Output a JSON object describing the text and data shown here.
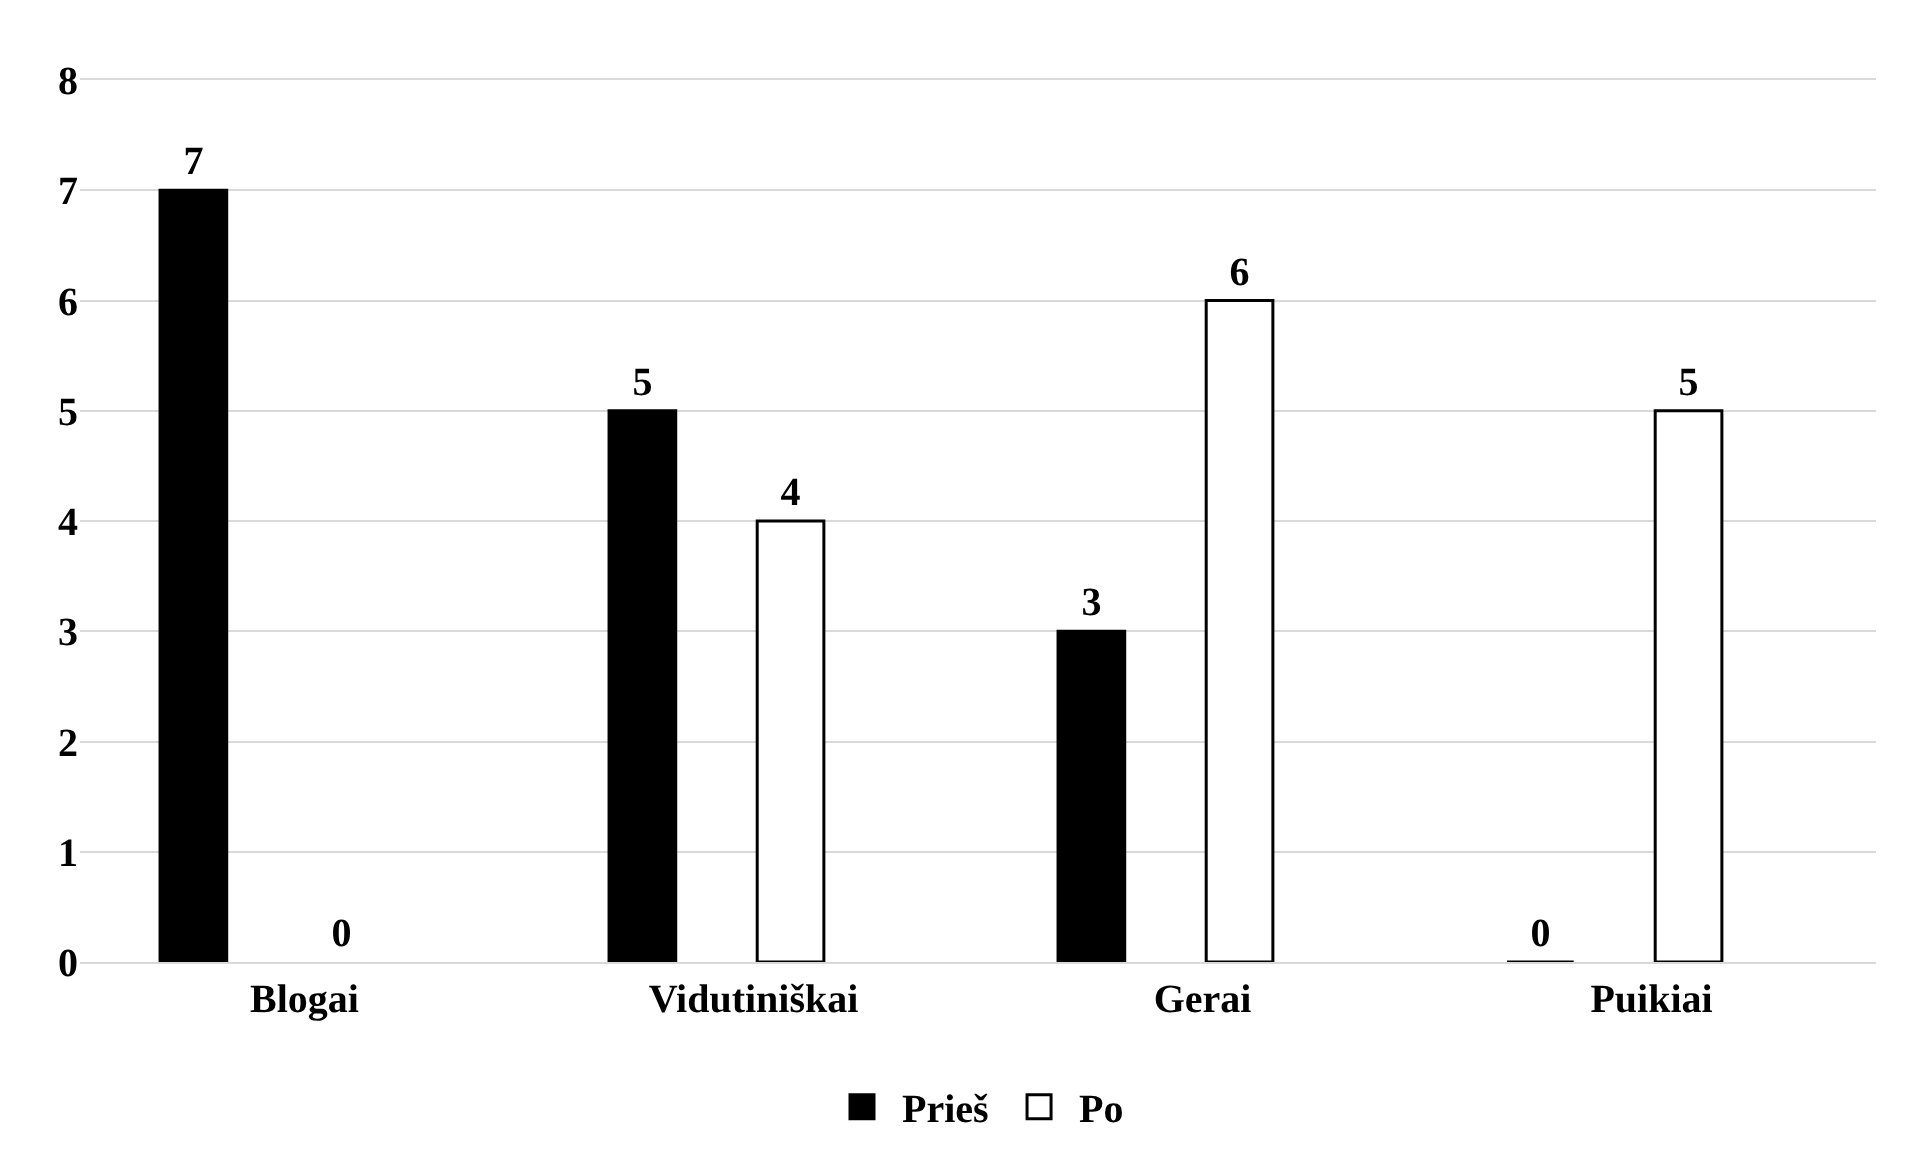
{
  "chart_data": {
    "type": "bar",
    "categories": [
      "Blogai",
      "Vidutiniškai",
      "Gerai",
      "Puikiai"
    ],
    "series": [
      {
        "name": "Prieš",
        "color": "#000000",
        "values": [
          7,
          5,
          3,
          0
        ]
      },
      {
        "name": "Po",
        "color": "#ffffff",
        "values": [
          0,
          4,
          6,
          5
        ]
      }
    ],
    "ylim": [
      0,
      8
    ],
    "yticks": [
      0,
      1,
      2,
      3,
      4,
      5,
      6,
      7,
      8
    ],
    "grid": "y",
    "legend": "bottom",
    "data_labels": true
  }
}
